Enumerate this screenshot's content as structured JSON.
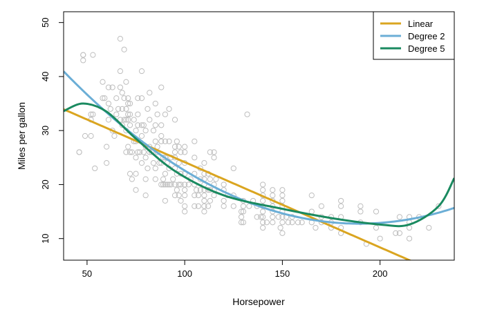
{
  "chart_data": {
    "type": "scatter",
    "title": "",
    "xlabel": "Horsepower",
    "ylabel": "Miles per gallon",
    "xlim": [
      38,
      238
    ],
    "ylim": [
      6,
      52
    ],
    "xticks": [
      50,
      100,
      150,
      200
    ],
    "yticks": [
      10,
      20,
      30,
      40,
      50
    ],
    "grid": false,
    "legend_position": "top-right",
    "colors": {
      "points": "#bdbdbd",
      "linear": "#DAA520",
      "degree2": "#6BAED6",
      "degree5": "#1A8A60",
      "frame": "#000000"
    },
    "points": [
      [
        46,
        26
      ],
      [
        46,
        26
      ],
      [
        48,
        43
      ],
      [
        48,
        44
      ],
      [
        48,
        44
      ],
      [
        49,
        29
      ],
      [
        52,
        29
      ],
      [
        52,
        32
      ],
      [
        52,
        33
      ],
      [
        53,
        33
      ],
      [
        53,
        44
      ],
      [
        54,
        23
      ],
      [
        58,
        36
      ],
      [
        58,
        39
      ],
      [
        59,
        36
      ],
      [
        60,
        27
      ],
      [
        60,
        24
      ],
      [
        61,
        32
      ],
      [
        61,
        35
      ],
      [
        61,
        38
      ],
      [
        62,
        34
      ],
      [
        63,
        38
      ],
      [
        63,
        30
      ],
      [
        64,
        29
      ],
      [
        65,
        33
      ],
      [
        65,
        36
      ],
      [
        66,
        34
      ],
      [
        67,
        38
      ],
      [
        67,
        47
      ],
      [
        67,
        41
      ],
      [
        67,
        32
      ],
      [
        68,
        31
      ],
      [
        68,
        34
      ],
      [
        68,
        37
      ],
      [
        69,
        32
      ],
      [
        69,
        36
      ],
      [
        69,
        45
      ],
      [
        70,
        26
      ],
      [
        70,
        30
      ],
      [
        70,
        32
      ],
      [
        70,
        34
      ],
      [
        70,
        39
      ],
      [
        71,
        27
      ],
      [
        71,
        32
      ],
      [
        71,
        33
      ],
      [
        71,
        35
      ],
      [
        71,
        36
      ],
      [
        72,
        22
      ],
      [
        72,
        26
      ],
      [
        72,
        31
      ],
      [
        72,
        33
      ],
      [
        72,
        35
      ],
      [
        73,
        21
      ],
      [
        73,
        26
      ],
      [
        74,
        28
      ],
      [
        74,
        32
      ],
      [
        75,
        30
      ],
      [
        75,
        28
      ],
      [
        75,
        25
      ],
      [
        75,
        22
      ],
      [
        75,
        19
      ],
      [
        76,
        26
      ],
      [
        76,
        31
      ],
      [
        76,
        36
      ],
      [
        76,
        33
      ],
      [
        77,
        26
      ],
      [
        78,
        24
      ],
      [
        78,
        29
      ],
      [
        78,
        31
      ],
      [
        78,
        36
      ],
      [
        78,
        41
      ],
      [
        79,
        26
      ],
      [
        79,
        31
      ],
      [
        80,
        27
      ],
      [
        80,
        25
      ],
      [
        80,
        21
      ],
      [
        80,
        18
      ],
      [
        80,
        30
      ],
      [
        81,
        23
      ],
      [
        81,
        34
      ],
      [
        82,
        26
      ],
      [
        82,
        27
      ],
      [
        82,
        32
      ],
      [
        82,
        37
      ],
      [
        83,
        26
      ],
      [
        84,
        24
      ],
      [
        84,
        30
      ],
      [
        85,
        21
      ],
      [
        85,
        23
      ],
      [
        85,
        28
      ],
      [
        85,
        31
      ],
      [
        85,
        35
      ],
      [
        86,
        26
      ],
      [
        86,
        33
      ],
      [
        86,
        27
      ],
      [
        87,
        24
      ],
      [
        88,
        20
      ],
      [
        88,
        24
      ],
      [
        88,
        28
      ],
      [
        88,
        29
      ],
      [
        88,
        31
      ],
      [
        88,
        38
      ],
      [
        89,
        20
      ],
      [
        89,
        25
      ],
      [
        89,
        21
      ],
      [
        90,
        20
      ],
      [
        90,
        22
      ],
      [
        90,
        25
      ],
      [
        90,
        28
      ],
      [
        90,
        33
      ],
      [
        90,
        17
      ],
      [
        91,
        20
      ],
      [
        91,
        24
      ],
      [
        92,
        20
      ],
      [
        92,
        23
      ],
      [
        92,
        28
      ],
      [
        92,
        34
      ],
      [
        93,
        20
      ],
      [
        93,
        25
      ],
      [
        94,
        21
      ],
      [
        95,
        18
      ],
      [
        95,
        20
      ],
      [
        95,
        23
      ],
      [
        95,
        25
      ],
      [
        95,
        26
      ],
      [
        95,
        27
      ],
      [
        95,
        32
      ],
      [
        96,
        19
      ],
      [
        96,
        22
      ],
      [
        96,
        28
      ],
      [
        97,
        18
      ],
      [
        97,
        20
      ],
      [
        97,
        24
      ],
      [
        97,
        27
      ],
      [
        98,
        17
      ],
      [
        98,
        20
      ],
      [
        98,
        22
      ],
      [
        98,
        26
      ],
      [
        100,
        15
      ],
      [
        100,
        16
      ],
      [
        100,
        18
      ],
      [
        100,
        19
      ],
      [
        100,
        20
      ],
      [
        100,
        22
      ],
      [
        100,
        24
      ],
      [
        100,
        26
      ],
      [
        100,
        27
      ],
      [
        102,
        20
      ],
      [
        103,
        21
      ],
      [
        105,
        16
      ],
      [
        105,
        18
      ],
      [
        105,
        20
      ],
      [
        105,
        22
      ],
      [
        105,
        25
      ],
      [
        105,
        28
      ],
      [
        106,
        19
      ],
      [
        107,
        16
      ],
      [
        107,
        18
      ],
      [
        108,
        19
      ],
      [
        108,
        21
      ],
      [
        108,
        23
      ],
      [
        110,
        15
      ],
      [
        110,
        16
      ],
      [
        110,
        17
      ],
      [
        110,
        18
      ],
      [
        110,
        19
      ],
      [
        110,
        20
      ],
      [
        110,
        21
      ],
      [
        110,
        22
      ],
      [
        110,
        24
      ],
      [
        112,
        16
      ],
      [
        112,
        19
      ],
      [
        112,
        22
      ],
      [
        113,
        17
      ],
      [
        113,
        19
      ],
      [
        113,
        21
      ],
      [
        113,
        26
      ],
      [
        115,
        18
      ],
      [
        115,
        19
      ],
      [
        115,
        20
      ],
      [
        115,
        25
      ],
      [
        115,
        26
      ],
      [
        116,
        21
      ],
      [
        120,
        16
      ],
      [
        120,
        17
      ],
      [
        120,
        19
      ],
      [
        120,
        20
      ],
      [
        122,
        18
      ],
      [
        125,
        16
      ],
      [
        125,
        18
      ],
      [
        125,
        23
      ],
      [
        129,
        13
      ],
      [
        129,
        14
      ],
      [
        129,
        15
      ],
      [
        130,
        13
      ],
      [
        130,
        15
      ],
      [
        130,
        16
      ],
      [
        130,
        17
      ],
      [
        132,
        33
      ],
      [
        133,
        16
      ],
      [
        135,
        17
      ],
      [
        137,
        14
      ],
      [
        137,
        16
      ],
      [
        139,
        14
      ],
      [
        140,
        12
      ],
      [
        140,
        13
      ],
      [
        140,
        14
      ],
      [
        140,
        15
      ],
      [
        140,
        16
      ],
      [
        140,
        17
      ],
      [
        140,
        18
      ],
      [
        140,
        19
      ],
      [
        140,
        20
      ],
      [
        142,
        13
      ],
      [
        145,
        13
      ],
      [
        145,
        14
      ],
      [
        145,
        15
      ],
      [
        145,
        16
      ],
      [
        145,
        17
      ],
      [
        145,
        18
      ],
      [
        145,
        19
      ],
      [
        148,
        14
      ],
      [
        149,
        12
      ],
      [
        150,
        11
      ],
      [
        150,
        13
      ],
      [
        150,
        14
      ],
      [
        150,
        15
      ],
      [
        150,
        16
      ],
      [
        150,
        17
      ],
      [
        150,
        18
      ],
      [
        150,
        19
      ],
      [
        152,
        14
      ],
      [
        153,
        13
      ],
      [
        155,
        13
      ],
      [
        155,
        14
      ],
      [
        158,
        13
      ],
      [
        160,
        13
      ],
      [
        165,
        13
      ],
      [
        165,
        15
      ],
      [
        165,
        18
      ],
      [
        167,
        12
      ],
      [
        170,
        13
      ],
      [
        170,
        14
      ],
      [
        170,
        16
      ],
      [
        175,
        12
      ],
      [
        175,
        13
      ],
      [
        175,
        14
      ],
      [
        180,
        11
      ],
      [
        180,
        12
      ],
      [
        180,
        14
      ],
      [
        180,
        16
      ],
      [
        180,
        17
      ],
      [
        190,
        13
      ],
      [
        190,
        15
      ],
      [
        190,
        16
      ],
      [
        193,
        9
      ],
      [
        198,
        12
      ],
      [
        198,
        15
      ],
      [
        200,
        10
      ],
      [
        208,
        11
      ],
      [
        210,
        11
      ],
      [
        210,
        14
      ],
      [
        215,
        10
      ],
      [
        215,
        12
      ],
      [
        215,
        13
      ],
      [
        215,
        14
      ],
      [
        220,
        14
      ],
      [
        225,
        12
      ],
      [
        230,
        16
      ]
    ],
    "series": [
      {
        "name": "Linear",
        "kind": "polynomial",
        "coef": [
          39.936,
          -0.15784
        ]
      },
      {
        "name": "Degree 2",
        "kind": "polynomial",
        "coef": [
          56.9,
          -0.4662,
          0.001231
        ]
      },
      {
        "name": "Degree 5",
        "kind": "smooth",
        "x": [
          38,
          48,
          60,
          75,
          95,
          120,
          150,
          175,
          200,
          215,
          230,
          238
        ],
        "y": [
          33.6,
          35.0,
          33.5,
          28.5,
          22.5,
          18.0,
          15.5,
          13.8,
          12.6,
          12.6,
          16.0,
          21.2
        ]
      }
    ],
    "legend": [
      "Linear",
      "Degree 2",
      "Degree 5"
    ]
  }
}
